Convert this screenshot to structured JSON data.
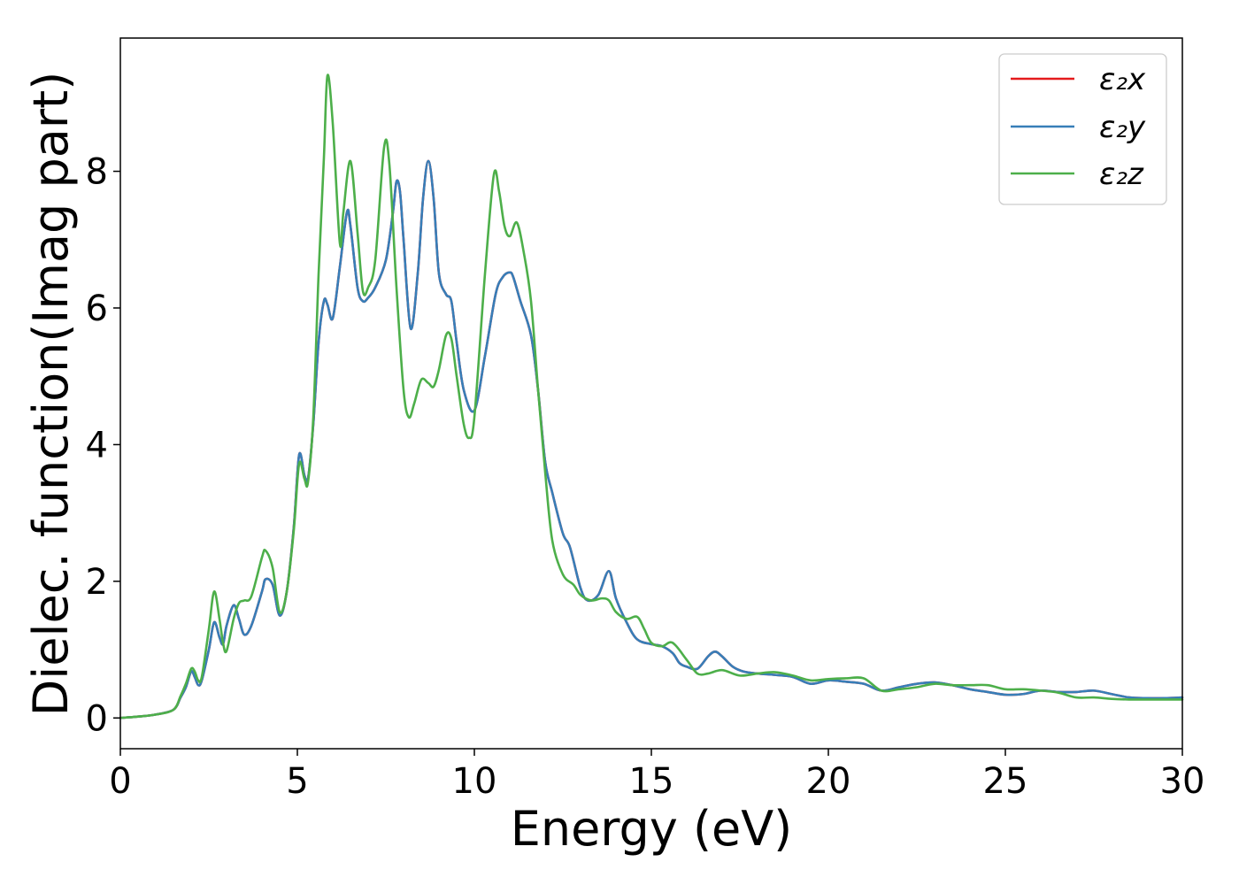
{
  "chart_data": {
    "type": "line",
    "xlabel": "Energy (eV)",
    "ylabel": "Dielec. function(Imag part)",
    "xlim": [
      0,
      30
    ],
    "ylim": [
      -0.45,
      9.95
    ],
    "xticks": [
      0,
      5,
      10,
      15,
      20,
      25,
      30
    ],
    "yticks": [
      0,
      2,
      4,
      6,
      8
    ],
    "grid": false,
    "legend": "top-right",
    "series": [
      {
        "name": "ε₂x",
        "color": "#e41a1c",
        "x": [
          0,
          0.5,
          1,
          1.5,
          1.7,
          1.85,
          2,
          2.1,
          2.2,
          2.3,
          2.5,
          2.65,
          2.8,
          2.9,
          3,
          3.2,
          3.35,
          3.5,
          3.7,
          4,
          4.1,
          4.3,
          4.5,
          4.7,
          4.9,
          5.05,
          5.2,
          5.3,
          5.45,
          5.6,
          5.75,
          5.85,
          6,
          6.2,
          6.4,
          6.5,
          6.7,
          6.85,
          7,
          7.2,
          7.5,
          7.7,
          7.8,
          7.9,
          8,
          8.2,
          8.4,
          8.55,
          8.7,
          8.85,
          9,
          9.2,
          9.35,
          9.5,
          9.7,
          10,
          10.3,
          10.6,
          10.8,
          11,
          11.1,
          11.3,
          11.6,
          11.8,
          12,
          12.2,
          12.5,
          12.7,
          13,
          13.2,
          13.5,
          13.8,
          14,
          14.3,
          14.6,
          15,
          15.3,
          15.6,
          15.8,
          16,
          16.3,
          16.6,
          16.8,
          17,
          17.3,
          17.6,
          18,
          18.5,
          19,
          19.5,
          20,
          20.5,
          21,
          21.5,
          22,
          22.5,
          23,
          23.5,
          24,
          24.5,
          25,
          25.5,
          26,
          26.5,
          27,
          27.5,
          28,
          28.5,
          29,
          29.5,
          30
        ],
        "y": [
          0,
          0.02,
          0.05,
          0.12,
          0.3,
          0.45,
          0.68,
          0.6,
          0.48,
          0.55,
          1.0,
          1.4,
          1.18,
          1.08,
          1.35,
          1.65,
          1.45,
          1.22,
          1.35,
          1.85,
          2.03,
          1.95,
          1.5,
          1.85,
          2.8,
          3.85,
          3.55,
          3.5,
          4.3,
          5.5,
          6.1,
          6.05,
          5.85,
          6.6,
          7.4,
          7.2,
          6.3,
          6.1,
          6.15,
          6.3,
          6.7,
          7.4,
          7.85,
          7.7,
          7.0,
          5.7,
          6.5,
          7.6,
          8.15,
          7.6,
          6.5,
          6.2,
          6.1,
          5.5,
          4.8,
          4.5,
          5.3,
          6.2,
          6.45,
          6.52,
          6.45,
          6.1,
          5.6,
          4.8,
          3.75,
          3.3,
          2.7,
          2.5,
          1.9,
          1.72,
          1.8,
          2.15,
          1.75,
          1.4,
          1.15,
          1.08,
          1.05,
          0.95,
          0.8,
          0.75,
          0.72,
          0.9,
          0.97,
          0.9,
          0.75,
          0.68,
          0.65,
          0.63,
          0.6,
          0.5,
          0.55,
          0.53,
          0.5,
          0.4,
          0.45,
          0.5,
          0.52,
          0.48,
          0.42,
          0.38,
          0.34,
          0.35,
          0.4,
          0.38,
          0.38,
          0.4,
          0.35,
          0.3,
          0.29,
          0.29,
          0.3
        ]
      },
      {
        "name": "ε₂y",
        "color": "#377eb8",
        "x": [
          0,
          0.5,
          1,
          1.5,
          1.7,
          1.85,
          2,
          2.1,
          2.2,
          2.3,
          2.5,
          2.65,
          2.8,
          2.9,
          3,
          3.2,
          3.35,
          3.5,
          3.7,
          4,
          4.1,
          4.3,
          4.5,
          4.7,
          4.9,
          5.05,
          5.2,
          5.3,
          5.45,
          5.6,
          5.75,
          5.85,
          6,
          6.2,
          6.4,
          6.5,
          6.7,
          6.85,
          7,
          7.2,
          7.5,
          7.7,
          7.8,
          7.9,
          8,
          8.2,
          8.4,
          8.55,
          8.7,
          8.85,
          9,
          9.2,
          9.35,
          9.5,
          9.7,
          10,
          10.3,
          10.6,
          10.8,
          11,
          11.1,
          11.3,
          11.6,
          11.8,
          12,
          12.2,
          12.5,
          12.7,
          13,
          13.2,
          13.5,
          13.8,
          14,
          14.3,
          14.6,
          15,
          15.3,
          15.6,
          15.8,
          16,
          16.3,
          16.6,
          16.8,
          17,
          17.3,
          17.6,
          18,
          18.5,
          19,
          19.5,
          20,
          20.5,
          21,
          21.5,
          22,
          22.5,
          23,
          23.5,
          24,
          24.5,
          25,
          25.5,
          26,
          26.5,
          27,
          27.5,
          28,
          28.5,
          29,
          29.5,
          30
        ],
        "y": [
          0,
          0.02,
          0.05,
          0.12,
          0.3,
          0.45,
          0.68,
          0.6,
          0.48,
          0.55,
          1.0,
          1.4,
          1.18,
          1.08,
          1.35,
          1.65,
          1.45,
          1.22,
          1.35,
          1.85,
          2.03,
          1.95,
          1.5,
          1.85,
          2.8,
          3.85,
          3.55,
          3.5,
          4.3,
          5.5,
          6.1,
          6.05,
          5.85,
          6.6,
          7.4,
          7.2,
          6.3,
          6.1,
          6.15,
          6.3,
          6.7,
          7.4,
          7.85,
          7.7,
          7.0,
          5.7,
          6.5,
          7.6,
          8.15,
          7.6,
          6.5,
          6.2,
          6.1,
          5.5,
          4.8,
          4.5,
          5.3,
          6.2,
          6.45,
          6.52,
          6.45,
          6.1,
          5.6,
          4.8,
          3.75,
          3.3,
          2.7,
          2.5,
          1.9,
          1.72,
          1.8,
          2.15,
          1.75,
          1.4,
          1.15,
          1.08,
          1.05,
          0.95,
          0.8,
          0.75,
          0.72,
          0.9,
          0.97,
          0.9,
          0.75,
          0.68,
          0.65,
          0.63,
          0.6,
          0.5,
          0.55,
          0.53,
          0.5,
          0.4,
          0.45,
          0.5,
          0.52,
          0.48,
          0.42,
          0.38,
          0.34,
          0.35,
          0.4,
          0.38,
          0.38,
          0.4,
          0.35,
          0.3,
          0.29,
          0.29,
          0.3
        ]
      },
      {
        "name": "ε₂z",
        "color": "#4daf4a",
        "x": [
          0,
          0.5,
          1,
          1.5,
          1.7,
          1.85,
          2,
          2.1,
          2.2,
          2.3,
          2.5,
          2.65,
          2.8,
          2.9,
          3,
          3.2,
          3.35,
          3.5,
          3.7,
          4,
          4.1,
          4.3,
          4.5,
          4.7,
          4.9,
          5.05,
          5.2,
          5.3,
          5.45,
          5.6,
          5.75,
          5.85,
          6,
          6.2,
          6.3,
          6.5,
          6.7,
          6.85,
          7,
          7.2,
          7.45,
          7.6,
          7.8,
          8,
          8.15,
          8.3,
          8.5,
          8.7,
          8.85,
          9,
          9.2,
          9.35,
          9.5,
          9.7,
          9.85,
          10,
          10.3,
          10.55,
          10.7,
          10.85,
          11,
          11.2,
          11.4,
          11.6,
          11.8,
          12,
          12.2,
          12.5,
          12.8,
          13,
          13.3,
          13.6,
          13.8,
          14,
          14.3,
          14.6,
          14.8,
          15,
          15.3,
          15.6,
          16,
          16.3,
          16.6,
          17,
          17.5,
          18,
          18.5,
          19,
          19.5,
          20,
          20.5,
          21,
          21.5,
          22,
          22.5,
          23,
          23.5,
          24,
          24.5,
          25,
          25.5,
          26,
          26.5,
          27,
          27.5,
          28,
          28.5,
          29,
          29.5,
          30
        ],
        "y": [
          0,
          0.02,
          0.05,
          0.12,
          0.32,
          0.5,
          0.72,
          0.68,
          0.55,
          0.6,
          1.3,
          1.85,
          1.45,
          1.1,
          0.98,
          1.45,
          1.68,
          1.72,
          1.78,
          2.35,
          2.45,
          2.2,
          1.55,
          1.85,
          2.75,
          3.72,
          3.5,
          3.45,
          4.4,
          6.5,
          8.2,
          9.4,
          8.7,
          6.95,
          7.4,
          8.15,
          7.1,
          6.25,
          6.3,
          6.7,
          8.35,
          8.1,
          6.3,
          4.8,
          4.4,
          4.6,
          4.95,
          4.9,
          4.85,
          5.1,
          5.6,
          5.55,
          5.0,
          4.3,
          4.1,
          4.4,
          6.5,
          7.95,
          7.7,
          7.2,
          7.05,
          7.25,
          6.8,
          6.1,
          4.8,
          3.6,
          2.6,
          2.1,
          1.95,
          1.8,
          1.72,
          1.75,
          1.72,
          1.55,
          1.45,
          1.48,
          1.3,
          1.1,
          1.05,
          1.1,
          0.85,
          0.65,
          0.65,
          0.7,
          0.62,
          0.65,
          0.67,
          0.62,
          0.55,
          0.57,
          0.58,
          0.58,
          0.4,
          0.42,
          0.45,
          0.5,
          0.48,
          0.48,
          0.48,
          0.42,
          0.42,
          0.4,
          0.37,
          0.3,
          0.3,
          0.28,
          0.27,
          0.27,
          0.27,
          0.27
        ]
      }
    ]
  }
}
